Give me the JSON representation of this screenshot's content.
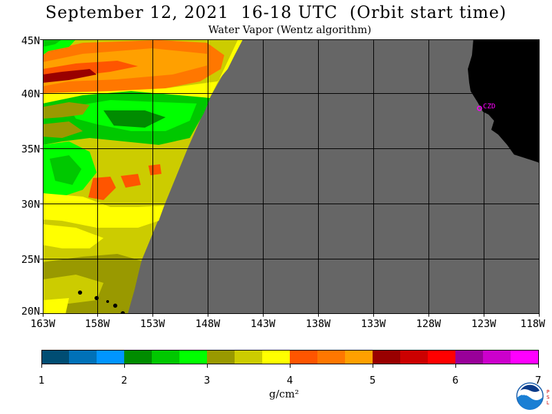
{
  "title": "September 12, 2021  16-18 UTC  (Orbit start time)",
  "subtitle": "Water Vapor (Wentz algorithm)",
  "lat_labels": [
    "45N",
    "40N",
    "35N",
    "30N",
    "25N",
    "20N"
  ],
  "lon_labels": [
    "163W",
    "158W",
    "153W",
    "148W",
    "143W",
    "138W",
    "133W",
    "128W",
    "123W",
    "118W"
  ],
  "station_label": "CZD",
  "colorbar": {
    "colors": [
      "#004d73",
      "#0071b8",
      "#0095ff",
      "#008c00",
      "#00c800",
      "#00ff00",
      "#999900",
      "#cccc00",
      "#ffff00",
      "#ff5500",
      "#ff7700",
      "#ffa000",
      "#990000",
      "#cc0000",
      "#ff0000",
      "#990099",
      "#cc00cc",
      "#ff00ff"
    ],
    "ticks": [
      "1",
      "2",
      "3",
      "4",
      "5",
      "6",
      "7"
    ]
  },
  "units": "g/cm²",
  "colors": {
    "no_data": "#666666",
    "land": "#000000",
    "grid": "#000000",
    "station": "#ff00ff"
  },
  "logo": {
    "text": "NOAA",
    "side_text": "PSL"
  }
}
